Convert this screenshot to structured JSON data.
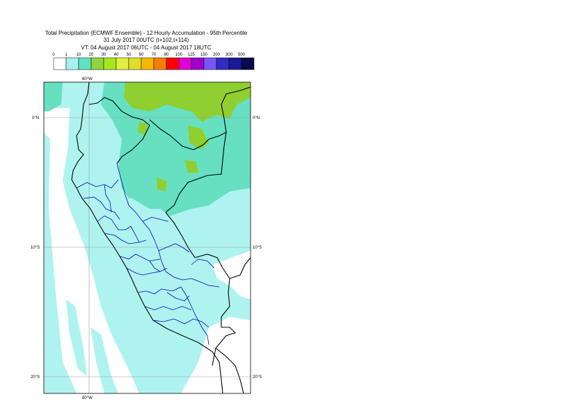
{
  "title": {
    "line1": "Total Precipitation (ECMWF Ensemble) - 12 Hourly Accumulation - 95th Percentile",
    "line2": "31 July 2017 00UTC (t+102,t+114)",
    "line3": "VT: 04 August 2017 06UTC - 04 August 2017 18UTC"
  },
  "legend": {
    "thresholds": [
      "0",
      "1",
      "10",
      "20",
      "30",
      "40",
      "50",
      "60",
      "70",
      "80",
      "100",
      "125",
      "150",
      "200",
      "300",
      "500"
    ],
    "colors": [
      "#ffffff",
      "#a6f2ef",
      "#60e3c3",
      "#8fd43c",
      "#a8e61c",
      "#e3ef3e",
      "#e0dd2a",
      "#f7b700",
      "#f57f00",
      "#ff0000",
      "#e000d6",
      "#a000cc",
      "#7a55f5",
      "#2e2ec4",
      "#1a1a94",
      "#0a0a4a"
    ]
  },
  "map": {
    "lon_labels": [
      "80°W",
      "80°W"
    ],
    "lat_labels": [
      "0°N",
      "0°N",
      "10°S",
      "10°S",
      "20°S",
      "20°S"
    ],
    "colors": {
      "light": "#aef3ef",
      "medium": "#66e0c0",
      "heavy": "#8fcf2f",
      "border": "#000000",
      "regions": "#0000bb",
      "grid": "#999999",
      "frame": "#000000"
    }
  }
}
